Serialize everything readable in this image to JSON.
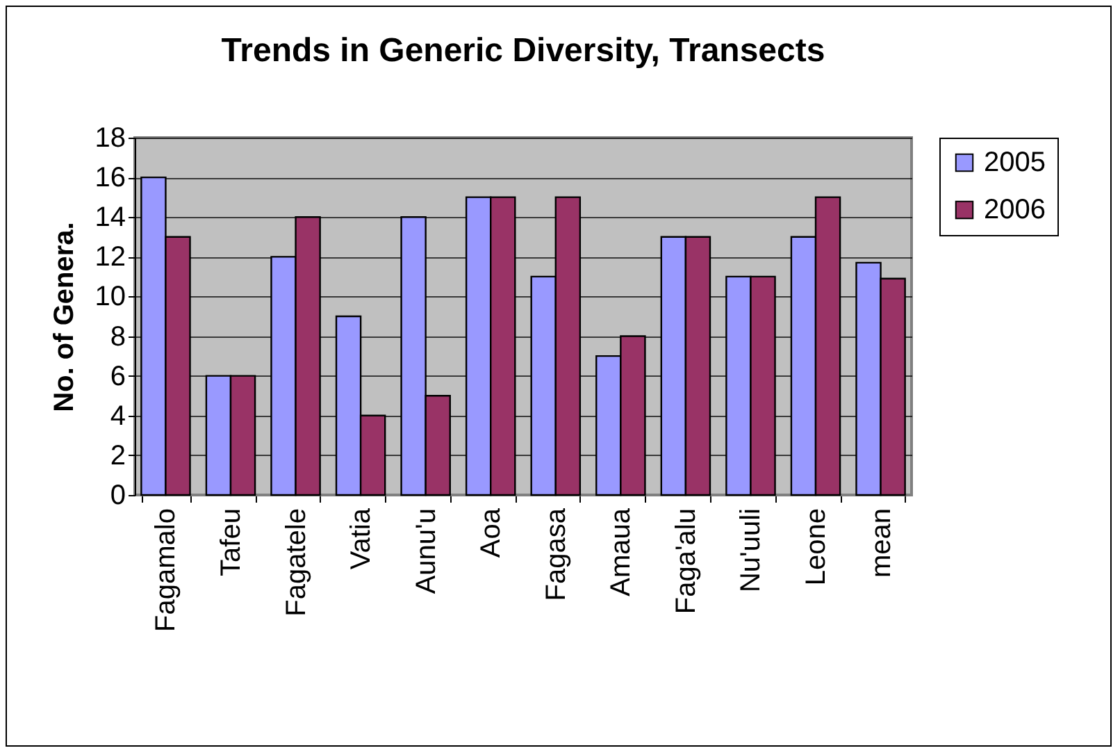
{
  "chart_data": {
    "type": "bar",
    "title": "Trends in Generic Diversity, Transects",
    "ylabel": "No. of Genera.",
    "categories": [
      "Fagamalo",
      "Tafeu",
      "Fagatele",
      "Vatia",
      "Aunu'u",
      "Aoa",
      "Fagasa",
      "Amaua",
      "Faga'alu",
      "Nu'uuli",
      "Leone",
      "mean"
    ],
    "series": [
      {
        "name": "2005",
        "color": "#9999ff",
        "values": [
          16,
          6,
          12,
          9,
          14,
          15,
          11,
          7,
          13,
          11,
          13,
          11.7
        ]
      },
      {
        "name": "2006",
        "color": "#993366",
        "values": [
          13,
          6,
          14,
          4,
          5,
          15,
          15,
          8,
          13,
          11,
          15,
          10.9
        ]
      }
    ],
    "ylim": [
      0,
      18
    ],
    "yticks": [
      0,
      2,
      4,
      6,
      8,
      10,
      12,
      14,
      16,
      18
    ],
    "grid": "y",
    "legend": "right"
  }
}
